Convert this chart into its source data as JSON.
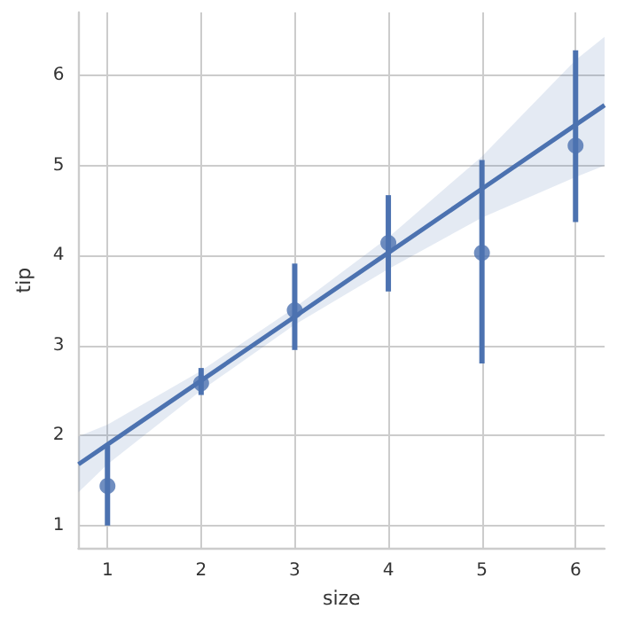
{
  "chart_data": {
    "type": "scatter",
    "xlabel": "size",
    "ylabel": "tip",
    "xlim": [
      0.69,
      6.31
    ],
    "xticks": [
      1,
      2,
      3,
      4,
      5,
      6
    ],
    "ylim": [
      0.75,
      6.7
    ],
    "yticks": [
      1,
      2,
      3,
      4,
      5,
      6
    ],
    "grid": true,
    "series": [
      {
        "marker": "circle",
        "color": "#4c72b0",
        "x": [
          1,
          2,
          3,
          4,
          5,
          6
        ],
        "values": [
          1.44,
          2.58,
          3.39,
          4.14,
          4.03,
          5.22
        ],
        "errors": [
          [
            1.0,
            1.89
          ],
          [
            2.45,
            2.75
          ],
          [
            2.95,
            3.91
          ],
          [
            3.6,
            4.67
          ],
          [
            2.8,
            5.06
          ],
          [
            4.37,
            6.28
          ]
        ]
      },
      {
        "type": "line",
        "marker": "none",
        "color": "#4c72b0",
        "x": [
          0.69,
          1,
          2,
          3,
          4,
          5,
          6,
          6.31
        ],
        "values": [
          1.68,
          1.9,
          2.61,
          3.32,
          4.03,
          4.74,
          5.45,
          5.67
        ],
        "lower": [
          1.37,
          1.68,
          2.5,
          3.23,
          3.85,
          4.42,
          4.87,
          5.0
        ],
        "upper": [
          1.99,
          2.12,
          2.72,
          3.42,
          4.2,
          5.1,
          6.17,
          6.43
        ]
      }
    ]
  }
}
